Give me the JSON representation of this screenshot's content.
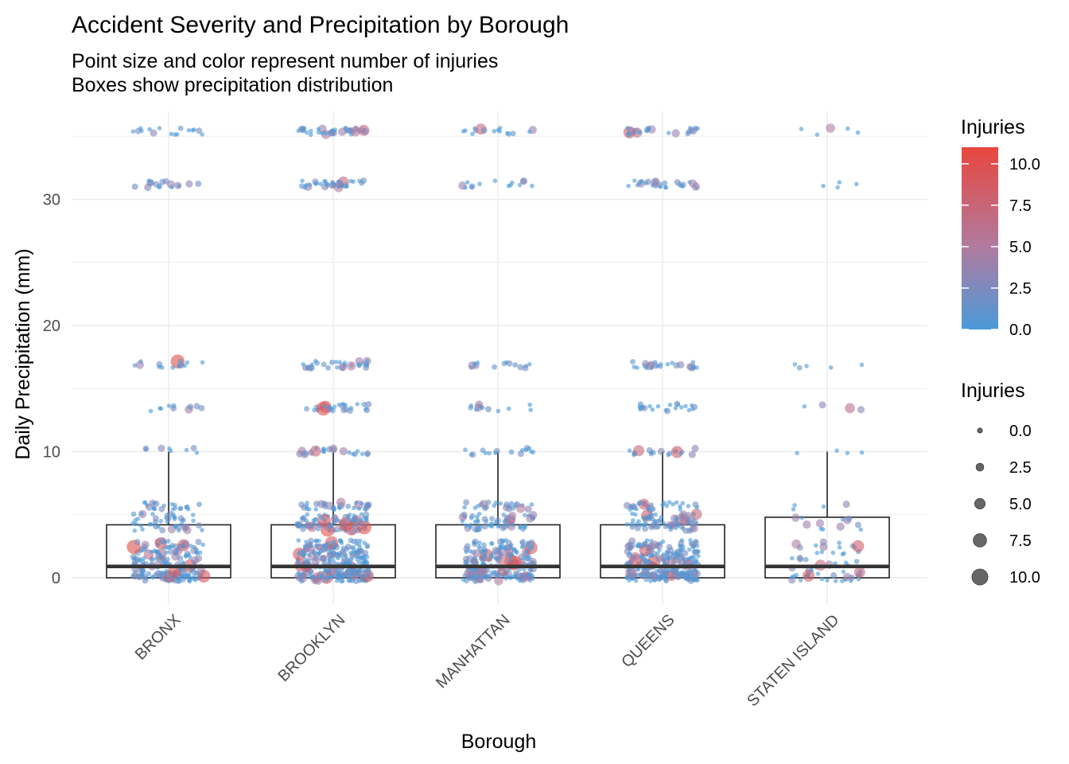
{
  "chart_data": {
    "type": "scatter",
    "title": "Accident Severity and Precipitation by Borough",
    "subtitle_lines": [
      "Point size and color represent number of injuries",
      "Boxes show precipitation distribution"
    ],
    "xlabel": "Borough",
    "ylabel": "Daily Precipitation (mm)",
    "categories": [
      "BRONX",
      "BROOKLYN",
      "MANHATTAN",
      "QUEENS",
      "STATEN ISLAND"
    ],
    "ylim": [
      -1.8,
      37.4
    ],
    "y_ticks": [
      0,
      10,
      20,
      30
    ],
    "y_tick_labels": [
      "0",
      "10",
      "20",
      "30"
    ],
    "grid": true,
    "colors": {
      "low": "#4a9ad9",
      "mid": "#b07ba0",
      "high": "#e8473d",
      "box": "#222222",
      "median": "#333333",
      "grid": "#ebebeb"
    },
    "boxplots": [
      {
        "category": "BRONX",
        "q1": 0.0,
        "median": 0.9,
        "q3": 4.2,
        "whisker_low": 0.0,
        "whisker_high": 10.0
      },
      {
        "category": "BROOKLYN",
        "q1": 0.0,
        "median": 0.9,
        "q3": 4.2,
        "whisker_low": 0.0,
        "whisker_high": 10.0
      },
      {
        "category": "MANHATTAN",
        "q1": 0.0,
        "median": 0.9,
        "q3": 4.2,
        "whisker_low": 0.0,
        "whisker_high": 10.0
      },
      {
        "category": "QUEENS",
        "q1": 0.0,
        "median": 0.9,
        "q3": 4.2,
        "whisker_low": 0.0,
        "whisker_high": 10.0
      },
      {
        "category": "STATEN ISLAND",
        "q1": 0.0,
        "median": 0.9,
        "q3": 4.8,
        "whisker_low": 0.0,
        "whisker_high": 10.0
      }
    ],
    "precip_levels": [
      0.0,
      0.3,
      0.8,
      1.3,
      1.8,
      2.3,
      2.7,
      4.0,
      4.3,
      4.8,
      5.7,
      10.0,
      13.5,
      16.9,
      31.2,
      35.4
    ],
    "points_per_level": {
      "BRONX": [
        40,
        30,
        30,
        25,
        25,
        20,
        18,
        15,
        12,
        18,
        22,
        8,
        10,
        14,
        16,
        16
      ],
      "BROOKLYN": [
        60,
        45,
        45,
        40,
        38,
        34,
        30,
        28,
        26,
        30,
        34,
        22,
        26,
        30,
        34,
        36
      ],
      "MANHATTAN": [
        45,
        34,
        34,
        30,
        28,
        25,
        22,
        18,
        18,
        22,
        24,
        16,
        12,
        14,
        14,
        16
      ],
      "QUEENS": [
        55,
        42,
        40,
        36,
        34,
        30,
        26,
        24,
        22,
        28,
        30,
        18,
        22,
        24,
        26,
        22
      ],
      "STATEN ISLAND": [
        18,
        8,
        6,
        6,
        6,
        6,
        5,
        5,
        3,
        4,
        4,
        4,
        4,
        5,
        4,
        5
      ]
    },
    "injuries_range": [
      0,
      11
    ],
    "color_legend": {
      "title": "Injuries",
      "ticks": [
        0.0,
        2.5,
        5.0,
        7.5,
        10.0
      ],
      "labels": [
        "0.0",
        "2.5",
        "5.0",
        "7.5",
        "10.0"
      ]
    },
    "size_legend": {
      "title": "Injuries",
      "values": [
        0.0,
        2.5,
        5.0,
        7.5,
        10.0
      ],
      "labels": [
        "0.0",
        "2.5",
        "5.0",
        "7.5",
        "10.0"
      ]
    }
  }
}
